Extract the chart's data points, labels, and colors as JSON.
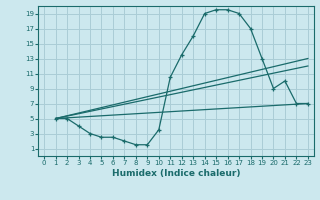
{
  "xlabel": "Humidex (Indice chaleur)",
  "ylabel": "",
  "bg_color": "#cce8ee",
  "grid_color": "#aacdd6",
  "line_color": "#1a6b6b",
  "xlim": [
    -0.5,
    23.5
  ],
  "ylim": [
    0,
    20
  ],
  "xticks": [
    0,
    1,
    2,
    3,
    4,
    5,
    6,
    7,
    8,
    9,
    10,
    11,
    12,
    13,
    14,
    15,
    16,
    17,
    18,
    19,
    20,
    21,
    22,
    23
  ],
  "yticks": [
    1,
    3,
    5,
    7,
    9,
    11,
    13,
    15,
    17,
    19
  ],
  "line1_x": [
    1,
    2,
    3,
    4,
    5,
    6,
    7,
    8,
    9,
    10,
    11,
    12,
    13,
    14,
    15,
    16,
    17,
    18,
    19,
    20,
    21,
    22,
    23
  ],
  "line1_y": [
    5,
    5,
    4,
    3,
    2.5,
    2.5,
    2,
    1.5,
    1.5,
    3.5,
    10.5,
    13.5,
    16,
    19,
    19.5,
    19.5,
    19,
    17,
    13,
    9,
    10,
    7,
    7
  ],
  "line2_x": [
    1,
    23
  ],
  "line2_y": [
    5,
    13
  ],
  "line3_x": [
    1,
    23
  ],
  "line3_y": [
    5,
    12
  ],
  "line4_x": [
    1,
    23
  ],
  "line4_y": [
    5,
    7
  ]
}
